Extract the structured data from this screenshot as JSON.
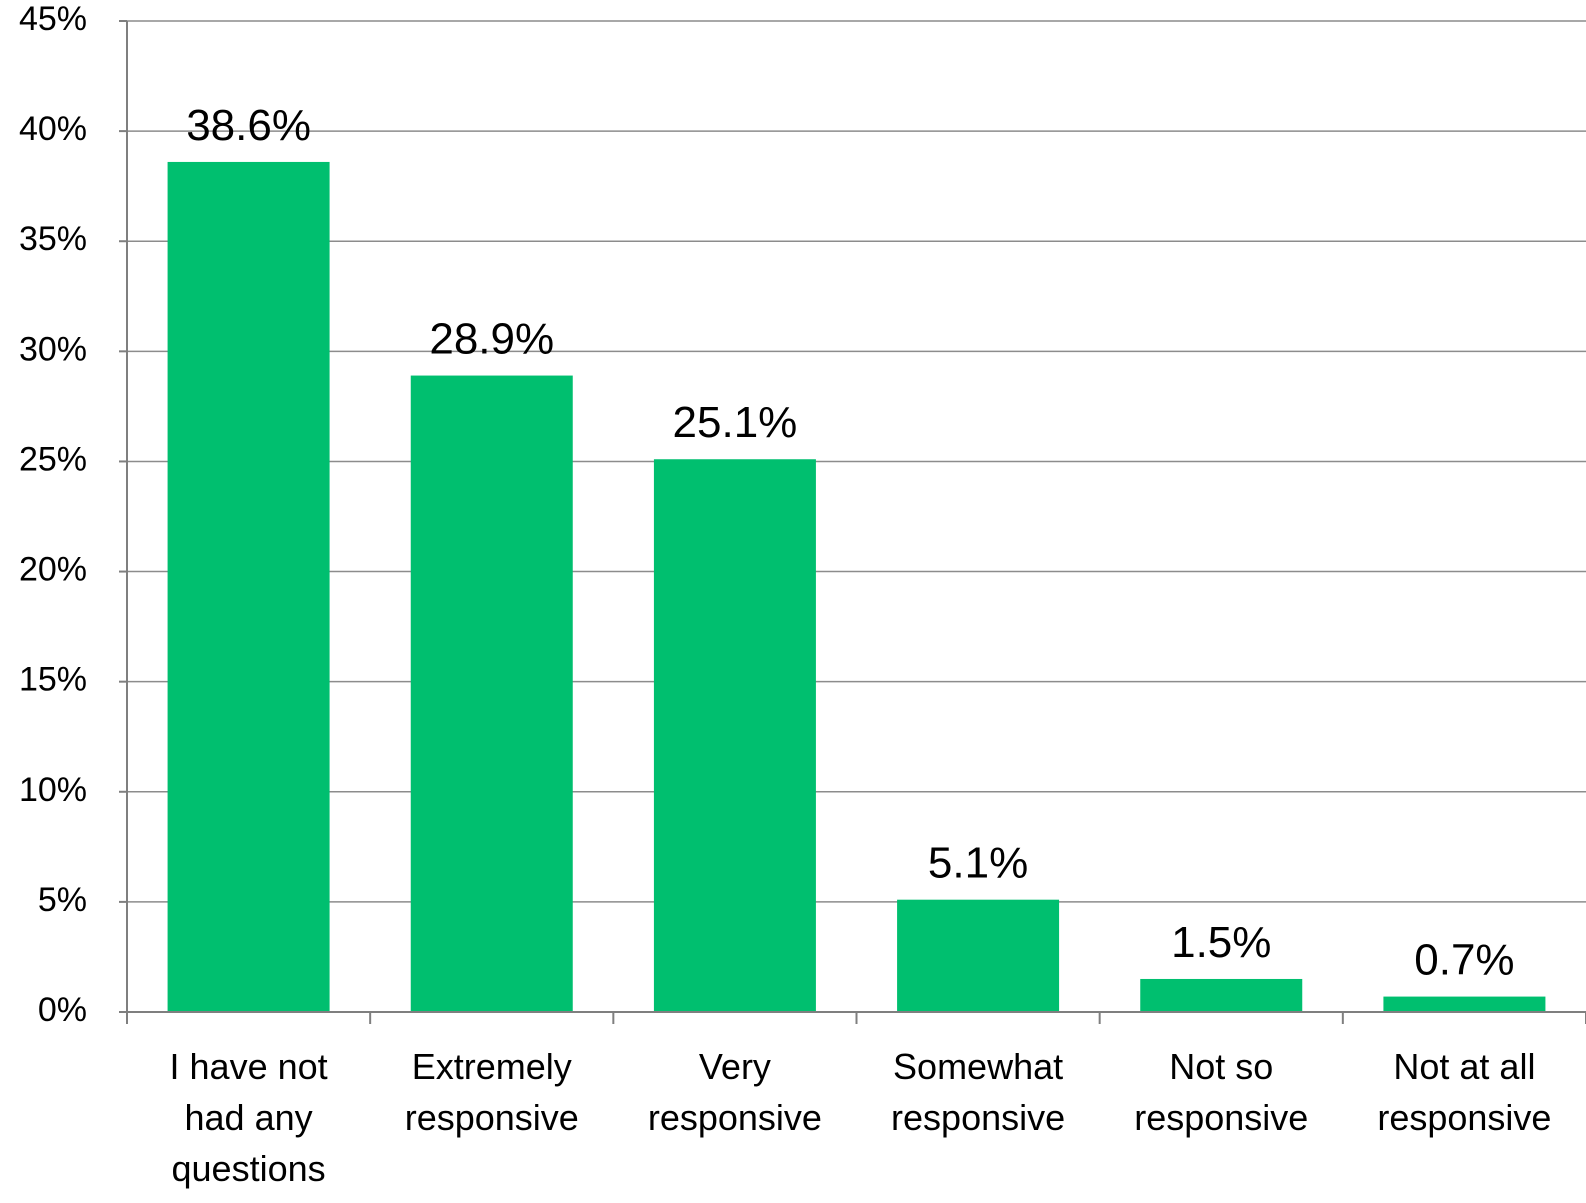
{
  "chart_data": {
    "type": "bar",
    "title": "",
    "xlabel": "",
    "ylabel": "",
    "categories": [
      [
        "I have not",
        "had any",
        "questions"
      ],
      [
        "Extremely",
        "responsive"
      ],
      [
        "Very",
        "responsive"
      ],
      [
        "Somewhat",
        "responsive"
      ],
      [
        "Not so",
        "responsive"
      ],
      [
        "Not at all",
        "responsive"
      ]
    ],
    "values": [
      38.6,
      28.9,
      25.1,
      5.1,
      1.5,
      0.7
    ],
    "data_labels": [
      "38.6%",
      "28.9%",
      "25.1%",
      "5.1%",
      "1.5%",
      "0.7%"
    ],
    "ylim": [
      0,
      45
    ],
    "yticks": [
      0,
      5,
      10,
      15,
      20,
      25,
      30,
      35,
      40,
      45
    ],
    "ytick_labels": [
      "0%",
      "5%",
      "10%",
      "15%",
      "20%",
      "25%",
      "30%",
      "35%",
      "40%",
      "45%"
    ],
    "grid": true,
    "legend": "none",
    "colors": {
      "bar": "#00bf6f",
      "grid": "#8c8c8c",
      "axis": "#7f7f7f"
    }
  }
}
